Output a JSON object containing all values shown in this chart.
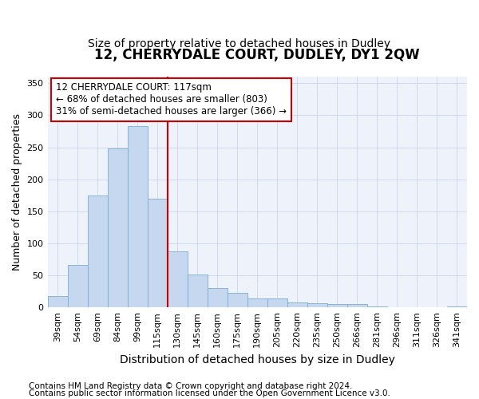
{
  "title1": "12, CHERRYDALE COURT, DUDLEY, DY1 2QW",
  "title2": "Size of property relative to detached houses in Dudley",
  "xlabel": "Distribution of detached houses by size in Dudley",
  "ylabel": "Number of detached properties",
  "categories": [
    "39sqm",
    "54sqm",
    "69sqm",
    "84sqm",
    "99sqm",
    "115sqm",
    "130sqm",
    "145sqm",
    "160sqm",
    "175sqm",
    "190sqm",
    "205sqm",
    "220sqm",
    "235sqm",
    "250sqm",
    "266sqm",
    "281sqm",
    "296sqm",
    "311sqm",
    "326sqm",
    "341sqm"
  ],
  "values": [
    18,
    67,
    175,
    248,
    283,
    170,
    87,
    51,
    30,
    23,
    14,
    14,
    8,
    6,
    5,
    5,
    2,
    0,
    0,
    1,
    2
  ],
  "bar_color": "#c5d8f0",
  "bar_edge_color": "#7aadd4",
  "vline_color": "#cc0000",
  "annotation_text": "12 CHERRYDALE COURT: 117sqm\n← 68% of detached houses are smaller (803)\n31% of semi-detached houses are larger (366) →",
  "annotation_box_color": "#ffffff",
  "annotation_box_edge": "#cc0000",
  "ylim": [
    0,
    360
  ],
  "yticks": [
    0,
    50,
    100,
    150,
    200,
    250,
    300,
    350
  ],
  "footnote1": "Contains HM Land Registry data © Crown copyright and database right 2024.",
  "footnote2": "Contains public sector information licensed under the Open Government Licence v3.0.",
  "bg_color": "#edf2fb",
  "title1_fontsize": 12,
  "title2_fontsize": 10,
  "xlabel_fontsize": 10,
  "ylabel_fontsize": 9,
  "tick_fontsize": 8,
  "annotation_fontsize": 8.5,
  "footnote_fontsize": 7.5
}
